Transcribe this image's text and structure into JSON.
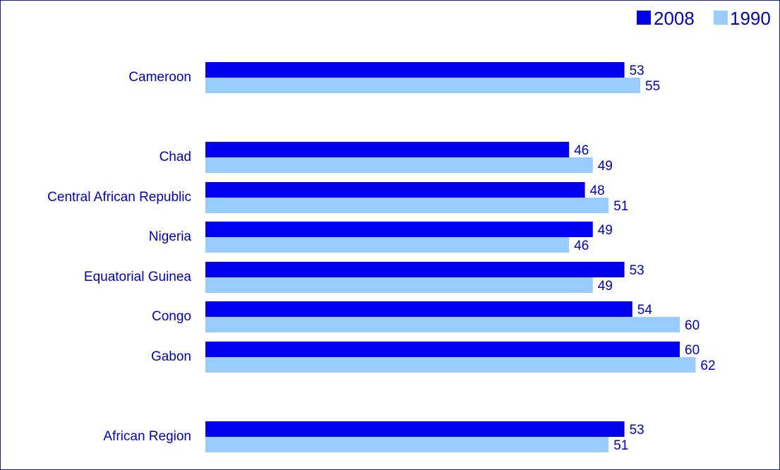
{
  "chart_data": {
    "type": "bar",
    "orientation": "horizontal",
    "categories": [
      "Cameroon",
      "Chad",
      "Central African Republic",
      "Nigeria",
      "Equatorial Guinea",
      "Congo",
      "Gabon",
      "African Region"
    ],
    "series": [
      {
        "name": "2008",
        "color": "#0000ee",
        "values": [
          53,
          46,
          48,
          49,
          53,
          54,
          60,
          53
        ]
      },
      {
        "name": "1990",
        "color": "#99ccff",
        "values": [
          55,
          49,
          51,
          46,
          49,
          60,
          62,
          51
        ]
      }
    ],
    "legend_position": "top-right",
    "grid": false,
    "value_labels": true
  }
}
